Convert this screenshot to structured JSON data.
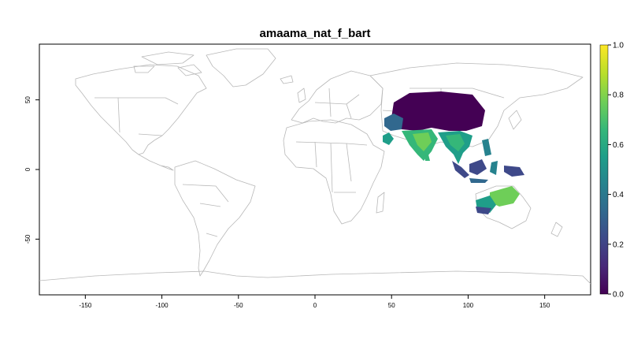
{
  "title": "amaama_nat_f_bart",
  "x_axis": {
    "ticks": [
      -150,
      -100,
      -50,
      0,
      50,
      100,
      150
    ],
    "range": [
      -180,
      180
    ]
  },
  "y_axis": {
    "ticks": [
      -50,
      0,
      50
    ],
    "range": [
      -90,
      90
    ]
  },
  "colorbar": {
    "palette": "viridis",
    "ticks": [
      "0.0",
      "0.2",
      "0.4",
      "0.6",
      "0.8",
      "1.0"
    ],
    "range": [
      0,
      1
    ]
  },
  "colors": {
    "border": "#b8b8b8",
    "viridis": [
      "#440154",
      "#482878",
      "#3e4989",
      "#31688e",
      "#26828e",
      "#1f9e89",
      "#35b779",
      "#6ece58",
      "#b5de2b",
      "#fde725"
    ]
  }
}
